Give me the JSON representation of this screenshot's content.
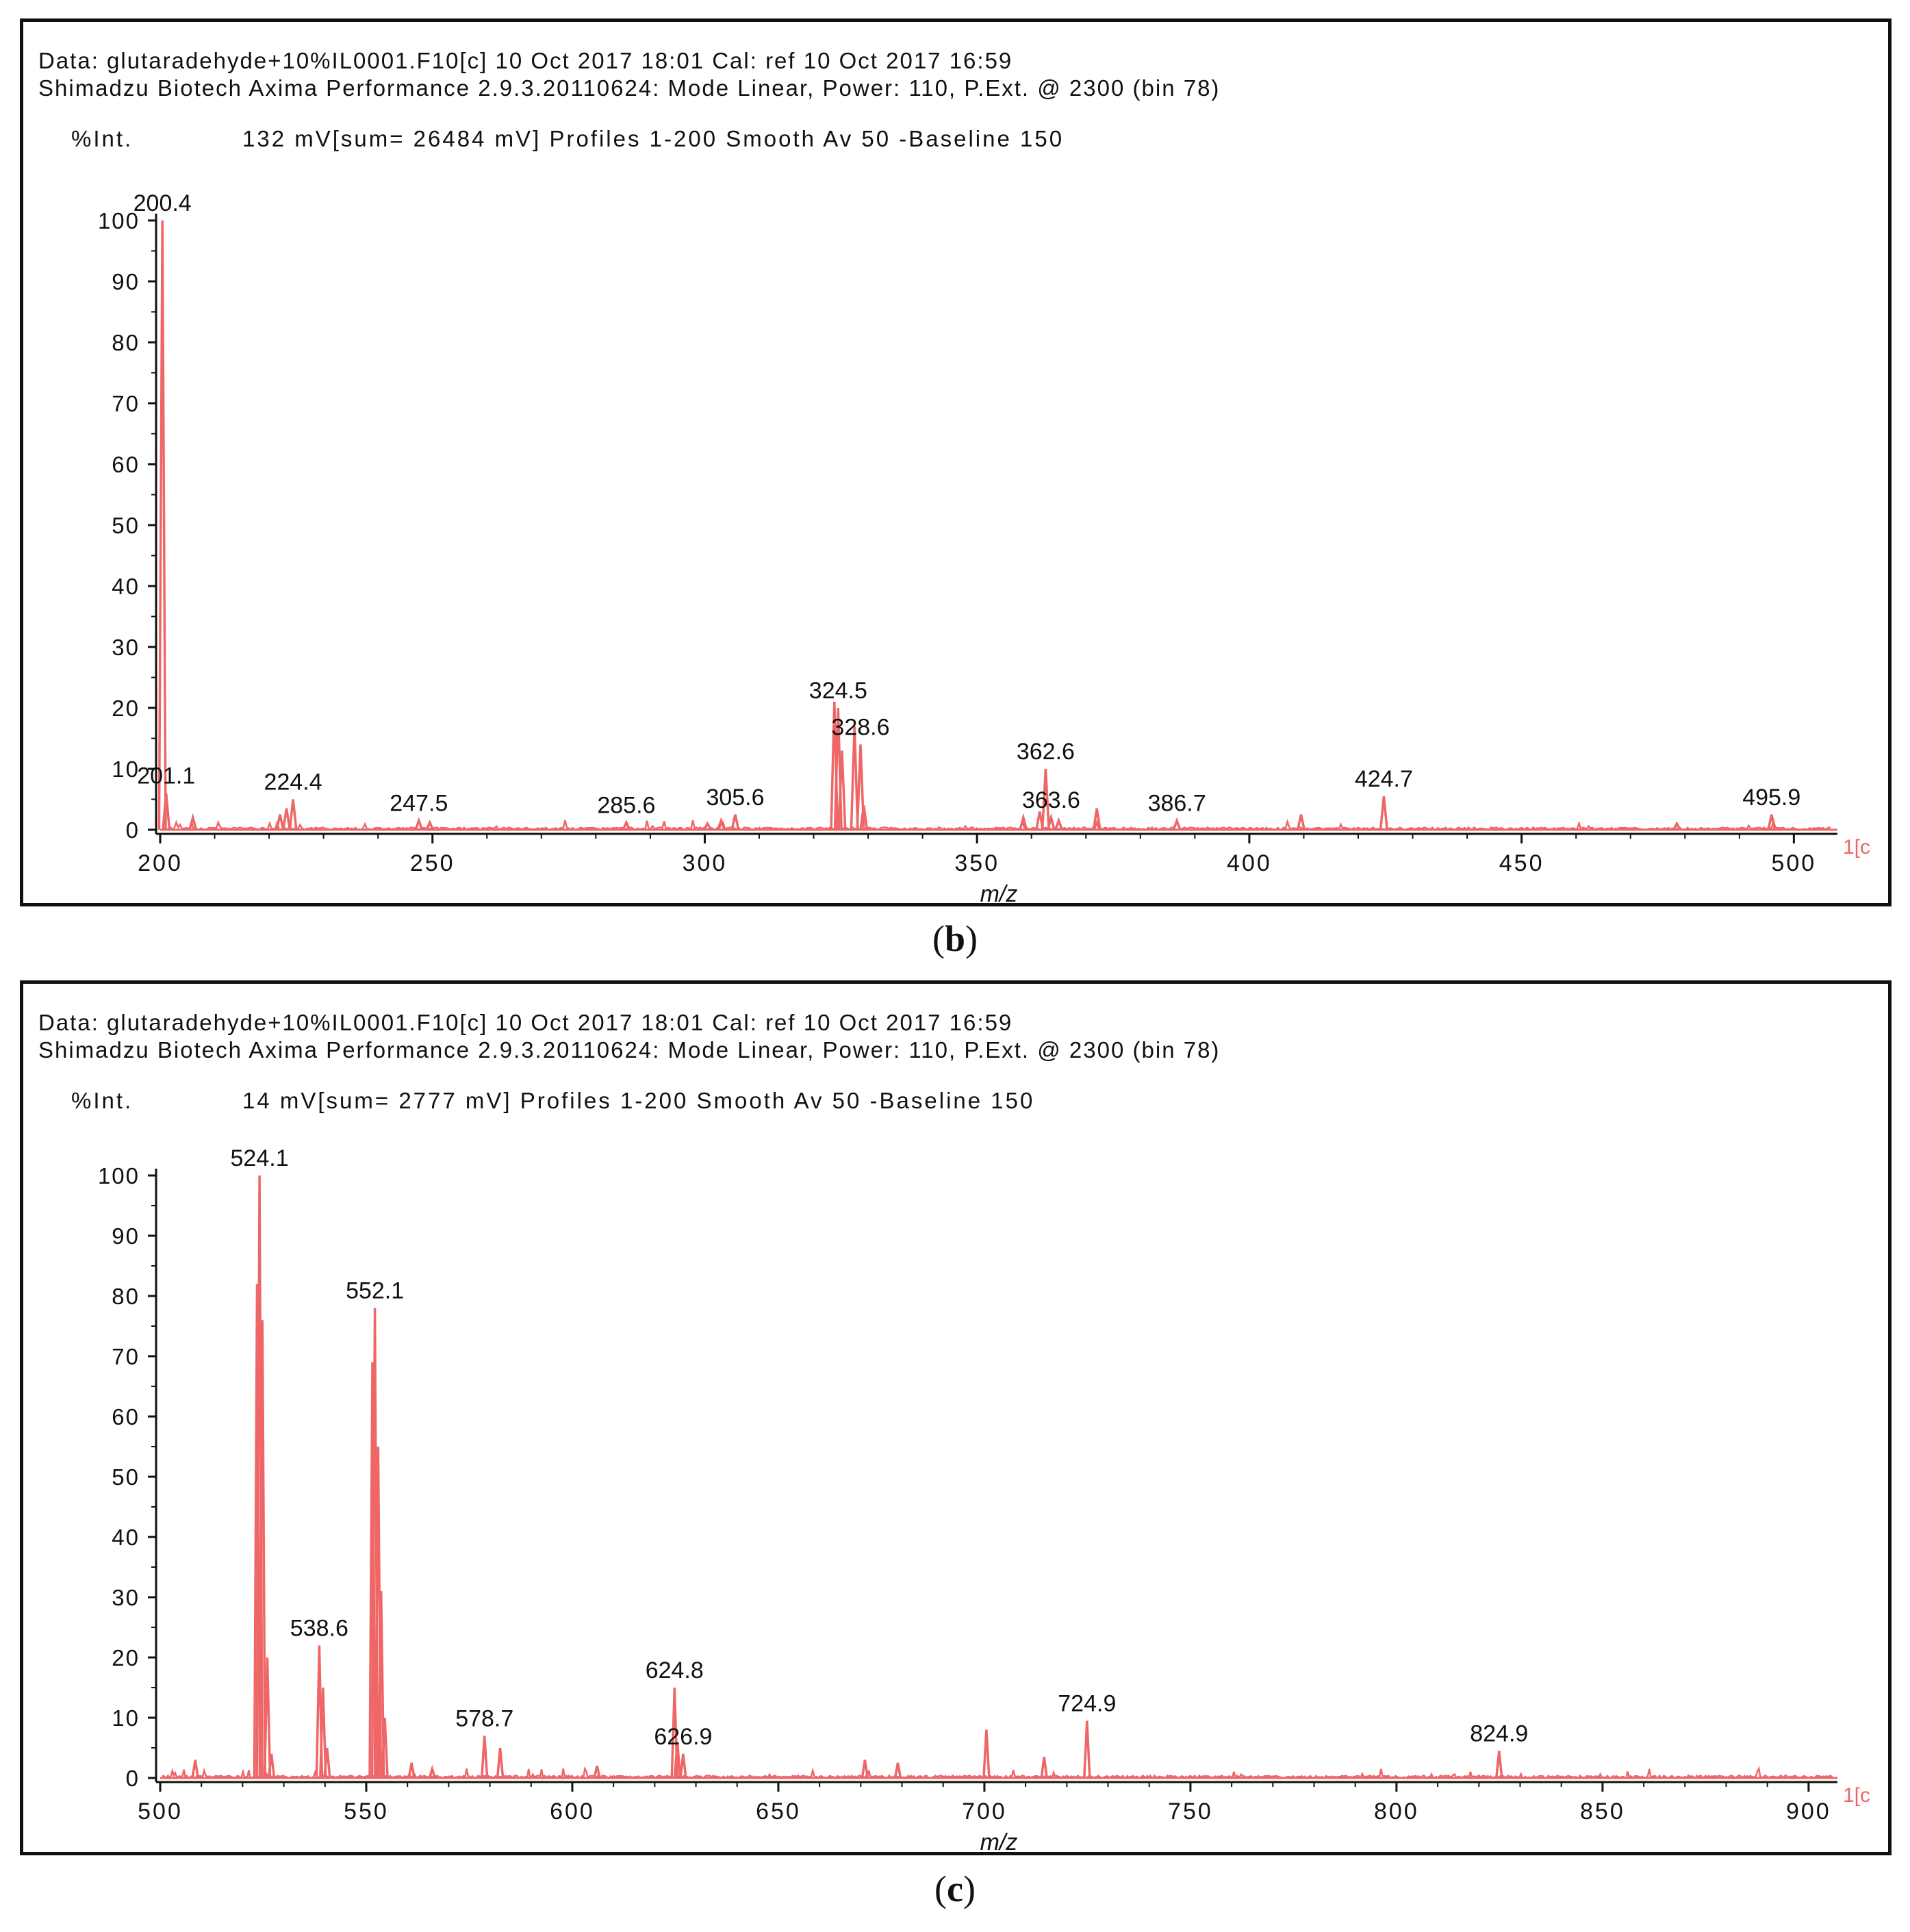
{
  "chart_data": [
    {
      "panel": "b",
      "type": "line",
      "header_line1": "Data: glutaradehyde+10%IL0001.F10[c] 10 Oct 2017 18:01 Cal: ref 10 Oct 2017 16:59",
      "header_line2": "Shimadzu Biotech Axima Performance 2.9.3.20110624: Mode Linear, Power: 110, P.Ext. @ 2300 (bin 78)",
      "ylabel": "%Int.",
      "acquisition": "132 mV[sum= 26484 mV] Profiles 1-200 Smooth Av 50 -Baseline 150",
      "xlabel": "m/z",
      "xlim": [
        200,
        508
      ],
      "ylim": [
        0,
        100
      ],
      "xticks": [
        "200",
        "250",
        "300",
        "350",
        "400",
        "450",
        "500"
      ],
      "yticks": [
        "100",
        "90",
        "80",
        "70",
        "60",
        "50",
        "40",
        "30",
        "20",
        "10",
        "0"
      ],
      "corner_tag": "1[c",
      "color": "#ee6666",
      "peaks": [
        {
          "x": 200.4,
          "y": 100,
          "label": "200.4"
        },
        {
          "x": 201.1,
          "y": 6,
          "label": "201.1"
        },
        {
          "x": 206.0,
          "y": 2
        },
        {
          "x": 222.0,
          "y": 2.5
        },
        {
          "x": 223.2,
          "y": 3.5
        },
        {
          "x": 224.4,
          "y": 5,
          "label": "224.4"
        },
        {
          "x": 247.5,
          "y": 1.5,
          "label": "247.5"
        },
        {
          "x": 249.5,
          "y": 1.2
        },
        {
          "x": 285.6,
          "y": 1.2,
          "label": "285.6"
        },
        {
          "x": 300.5,
          "y": 1
        },
        {
          "x": 303.0,
          "y": 1.5
        },
        {
          "x": 305.6,
          "y": 2.5,
          "label": "305.6"
        },
        {
          "x": 323.8,
          "y": 21
        },
        {
          "x": 324.5,
          "y": 20,
          "label": "324.5"
        },
        {
          "x": 325.2,
          "y": 13
        },
        {
          "x": 327.5,
          "y": 17
        },
        {
          "x": 328.6,
          "y": 14,
          "label": "328.6"
        },
        {
          "x": 329.2,
          "y": 4
        },
        {
          "x": 358.5,
          "y": 2
        },
        {
          "x": 361.5,
          "y": 3
        },
        {
          "x": 362.6,
          "y": 10,
          "label": "362.6"
        },
        {
          "x": 363.6,
          "y": 2,
          "label": "363.6"
        },
        {
          "x": 365.0,
          "y": 1.5
        },
        {
          "x": 372.0,
          "y": 3.5
        },
        {
          "x": 386.7,
          "y": 1.5,
          "label": "386.7"
        },
        {
          "x": 409.5,
          "y": 2.5
        },
        {
          "x": 424.7,
          "y": 5.5,
          "label": "424.7"
        },
        {
          "x": 478.5,
          "y": 1
        },
        {
          "x": 495.9,
          "y": 2.5,
          "label": "495.9"
        }
      ]
    },
    {
      "panel": "c",
      "type": "line",
      "header_line1": "Data: glutaradehyde+10%IL0001.F10[c] 10 Oct 2017 18:01 Cal: ref 10 Oct 2017 16:59",
      "header_line2": "Shimadzu Biotech Axima Performance 2.9.3.20110624: Mode Linear, Power: 110, P.Ext. @ 2300 (bin 78)",
      "ylabel": "%Int.",
      "acquisition": "14 mV[sum= 2777 mV] Profiles 1-200 Smooth Av 50 -Baseline 150",
      "xlabel": "m/z",
      "xlim": [
        500,
        907
      ],
      "ylim": [
        0,
        100
      ],
      "xticks": [
        "500",
        "550",
        "600",
        "650",
        "700",
        "750",
        "800",
        "850",
        "900"
      ],
      "yticks": [
        "100",
        "90",
        "80",
        "70",
        "60",
        "50",
        "40",
        "30",
        "20",
        "10",
        "0"
      ],
      "corner_tag": "1[c",
      "color": "#ee6666",
      "peaks": [
        {
          "x": 508.5,
          "y": 3
        },
        {
          "x": 523.5,
          "y": 82
        },
        {
          "x": 524.1,
          "y": 100,
          "label": "524.1"
        },
        {
          "x": 524.8,
          "y": 76
        },
        {
          "x": 526.0,
          "y": 20
        },
        {
          "x": 527.0,
          "y": 4
        },
        {
          "x": 538.6,
          "y": 22,
          "label": "538.6"
        },
        {
          "x": 539.5,
          "y": 15
        },
        {
          "x": 540.5,
          "y": 5
        },
        {
          "x": 551.5,
          "y": 69
        },
        {
          "x": 552.1,
          "y": 78,
          "label": "552.1"
        },
        {
          "x": 552.9,
          "y": 55
        },
        {
          "x": 553.6,
          "y": 31
        },
        {
          "x": 554.5,
          "y": 10
        },
        {
          "x": 561.0,
          "y": 2.5
        },
        {
          "x": 566.0,
          "y": 1.5
        },
        {
          "x": 578.7,
          "y": 7,
          "label": "578.7"
        },
        {
          "x": 582.5,
          "y": 5
        },
        {
          "x": 606.0,
          "y": 2
        },
        {
          "x": 624.8,
          "y": 15,
          "label": "624.8"
        },
        {
          "x": 625.5,
          "y": 6
        },
        {
          "x": 626.9,
          "y": 4,
          "label": "626.9"
        },
        {
          "x": 671.0,
          "y": 3
        },
        {
          "x": 679.0,
          "y": 2.5
        },
        {
          "x": 700.5,
          "y": 8
        },
        {
          "x": 714.5,
          "y": 3.5
        },
        {
          "x": 724.9,
          "y": 9.5,
          "label": "724.9"
        },
        {
          "x": 824.9,
          "y": 4.5,
          "label": "824.9"
        }
      ]
    }
  ],
  "panel_labels": {
    "b": "b",
    "c": "c"
  }
}
